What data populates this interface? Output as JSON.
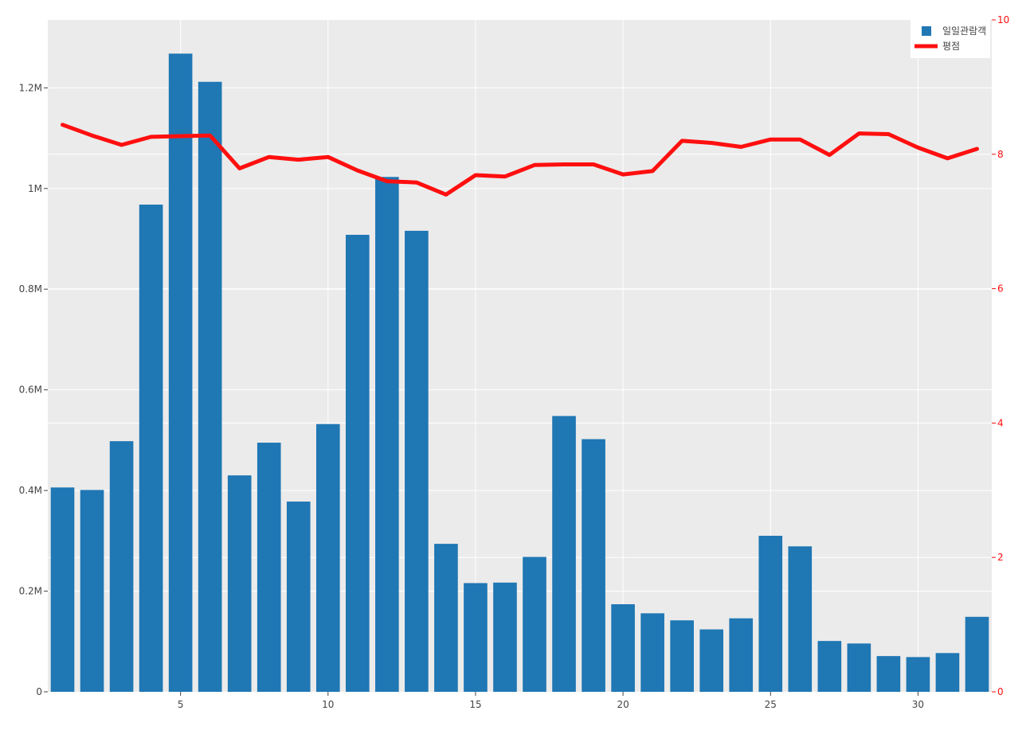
{
  "colors": {
    "plot_bg": "#ebebeb",
    "grid": "#ffffff",
    "bar": "#1f77b4",
    "line": "#ff0f0f",
    "left_tick": "#444444",
    "right_tick": "#ff0f0f"
  },
  "legend": {
    "placement": "top-right",
    "items": [
      {
        "label": "일일관람객",
        "kind": "bar"
      },
      {
        "label": "평점",
        "kind": "line"
      }
    ]
  },
  "chart_data": {
    "type": "bar",
    "x": [
      1,
      2,
      3,
      4,
      5,
      6,
      7,
      8,
      9,
      10,
      11,
      12,
      13,
      14,
      15,
      16,
      17,
      18,
      19,
      20,
      21,
      22,
      23,
      24,
      25,
      26,
      27,
      28,
      29,
      30,
      31,
      32
    ],
    "xlim": [
      0.5,
      32.5
    ],
    "xticks": [
      5,
      10,
      15,
      20,
      25,
      30
    ],
    "x_tick_labels": [
      "5",
      "10",
      "15",
      "20",
      "25",
      "30"
    ],
    "grid": true,
    "series": [
      {
        "name": "일일관람객",
        "type": "bar",
        "axis": "left",
        "values": [
          406000,
          401000,
          498000,
          968000,
          1268000,
          1212000,
          430000,
          495000,
          378000,
          532000,
          908000,
          1023000,
          916000,
          294000,
          216000,
          217000,
          268000,
          548000,
          502000,
          174000,
          156000,
          142000,
          124000,
          146000,
          310000,
          289000,
          101000,
          96000,
          71000,
          69000,
          77000,
          149000
        ]
      },
      {
        "name": "평점",
        "type": "line",
        "axis": "right",
        "values": [
          8.44,
          8.28,
          8.14,
          8.26,
          8.27,
          8.28,
          7.79,
          7.96,
          7.92,
          7.96,
          7.76,
          7.6,
          7.58,
          7.4,
          7.69,
          7.67,
          7.84,
          7.85,
          7.85,
          7.7,
          7.75,
          8.2,
          8.17,
          8.11,
          8.22,
          8.22,
          7.99,
          8.31,
          8.3,
          8.1,
          7.94,
          8.08
        ]
      }
    ],
    "y_left": {
      "ylim": [
        0,
        1335000
      ],
      "ticks": [
        0,
        200000,
        400000,
        600000,
        800000,
        1000000,
        1200000
      ],
      "tick_labels": [
        "0",
        "0.2M",
        "0.4M",
        "0.6M",
        "0.8M",
        "1M",
        "1.2M"
      ]
    },
    "y_right": {
      "ylim": [
        0,
        10
      ],
      "ticks": [
        0,
        2,
        4,
        6,
        8,
        10
      ],
      "tick_labels": [
        "0",
        "2",
        "4",
        "6",
        "8",
        "10"
      ]
    }
  }
}
